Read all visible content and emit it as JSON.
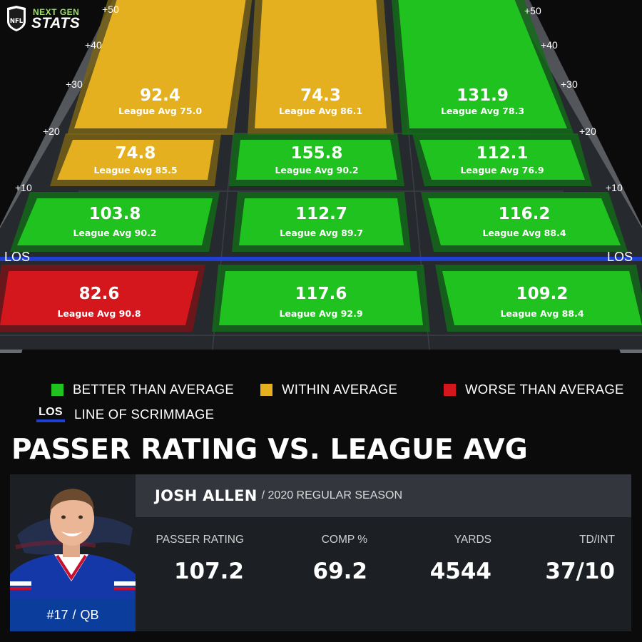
{
  "brand": {
    "line1": "NEXT GEN",
    "line2": "STATS",
    "shield_text": "NFL"
  },
  "colors": {
    "better": "#1fc21f",
    "within": "#e5b020",
    "worse": "#d4171d",
    "los": "#1e3fd0"
  },
  "field": {
    "yard_marks": [
      "+50",
      "+40",
      "+30",
      "+20",
      "+10"
    ],
    "los_label": "LOS",
    "zones": [
      {
        "row": "20+",
        "col": "left",
        "value": "92.4",
        "league_avg": "League Avg 75.0",
        "status": "within"
      },
      {
        "row": "20+",
        "col": "middle",
        "value": "74.3",
        "league_avg": "League Avg 86.1",
        "status": "within"
      },
      {
        "row": "20+",
        "col": "right",
        "value": "131.9",
        "league_avg": "League Avg 78.3",
        "status": "better"
      },
      {
        "row": "10-19",
        "col": "left",
        "value": "74.8",
        "league_avg": "League Avg 85.5",
        "status": "within"
      },
      {
        "row": "10-19",
        "col": "middle",
        "value": "155.8",
        "league_avg": "League Avg 90.2",
        "status": "better"
      },
      {
        "row": "10-19",
        "col": "right",
        "value": "112.1",
        "league_avg": "League Avg 76.9",
        "status": "better"
      },
      {
        "row": "0-9",
        "col": "left",
        "value": "103.8",
        "league_avg": "League Avg 90.2",
        "status": "better"
      },
      {
        "row": "0-9",
        "col": "middle",
        "value": "112.7",
        "league_avg": "League Avg 89.7",
        "status": "better"
      },
      {
        "row": "0-9",
        "col": "right",
        "value": "116.2",
        "league_avg": "League Avg 88.4",
        "status": "better"
      },
      {
        "row": "behind",
        "col": "left",
        "value": "82.6",
        "league_avg": "League Avg 90.8",
        "status": "worse"
      },
      {
        "row": "behind",
        "col": "middle",
        "value": "117.6",
        "league_avg": "League Avg 92.9",
        "status": "better"
      },
      {
        "row": "behind",
        "col": "right",
        "value": "109.2",
        "league_avg": "League Avg 88.4",
        "status": "better"
      }
    ]
  },
  "legend": {
    "better": "BETTER THAN AVERAGE",
    "within": "WITHIN AVERAGE",
    "worse": "WORSE THAN AVERAGE",
    "los_tag": "LOS",
    "los": "LINE OF SCRIMMAGE"
  },
  "headline": "PASSER RATING VS. LEAGUE AVG",
  "player": {
    "name": "JOSH ALLEN",
    "season": "/ 2020 REGULAR SEASON",
    "number": "#17",
    "position": "QB",
    "stats": [
      {
        "label": "PASSER RATING",
        "value": "107.2"
      },
      {
        "label": "COMP %",
        "value": "69.2"
      },
      {
        "label": "YARDS",
        "value": "4544"
      },
      {
        "label": "TD/INT",
        "value": "37/10"
      }
    ]
  }
}
